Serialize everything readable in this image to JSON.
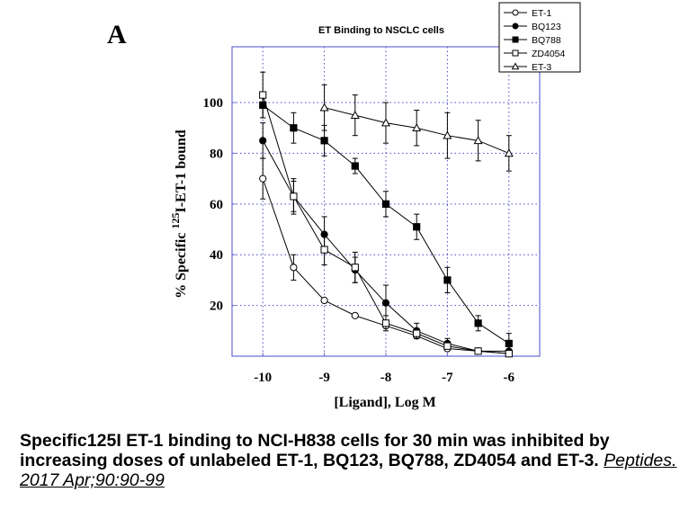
{
  "panel_label": "A",
  "chart_data": {
    "type": "line",
    "title": "ET Binding to NSCLC cells",
    "xlabel": "[Ligand], Log M",
    "ylabel_prefix": "% Specific ",
    "ylabel_superscript": "125",
    "ylabel_suffix": "I-ET-1 bound",
    "xlim": [
      -10.5,
      -5.5
    ],
    "ylim": [
      0,
      122
    ],
    "x_ticks": [
      -10,
      -9,
      -8,
      -7,
      -6
    ],
    "x_tick_labels": [
      "-10",
      "-9",
      "-8",
      "-7",
      "-6"
    ],
    "y_ticks": [
      20,
      40,
      60,
      80,
      100
    ],
    "y_tick_labels": [
      "20",
      "40",
      "60",
      "80",
      "100"
    ],
    "grid": true,
    "legend_position": "top-right",
    "series": [
      {
        "name": "ET-1",
        "marker": "open-circle",
        "x": [
          -10,
          -9.5,
          -9,
          -8.5,
          -8,
          -7.5,
          -7,
          -6.5,
          -6
        ],
        "y": [
          70,
          35,
          22,
          16,
          12,
          8,
          3,
          2,
          1
        ],
        "err": [
          8,
          5,
          0,
          0,
          0,
          0,
          0,
          0,
          0
        ]
      },
      {
        "name": "BQ123",
        "marker": "filled-circle",
        "x": [
          -10,
          -9.5,
          -9,
          -8.5,
          -8,
          -7.5,
          -7,
          -6.5,
          -6
        ],
        "y": [
          85,
          63,
          48,
          34,
          21,
          10,
          5,
          2,
          2
        ],
        "err": [
          7,
          6,
          7,
          5,
          7,
          3,
          2,
          0,
          0
        ]
      },
      {
        "name": "BQ788",
        "marker": "filled-square",
        "x": [
          -10,
          -9.5,
          -9,
          -8.5,
          -8,
          -7.5,
          -7,
          -6.5,
          -6
        ],
        "y": [
          99,
          90,
          85,
          75,
          60,
          51,
          30,
          13,
          5
        ],
        "err": [
          5,
          6,
          6,
          3,
          5,
          5,
          5,
          3,
          4
        ]
      },
      {
        "name": "ZD4054",
        "marker": "open-square",
        "x": [
          -10,
          -9.5,
          -9,
          -8.5,
          -8,
          -7.5,
          -7,
          -6.5,
          -6
        ],
        "y": [
          103,
          63,
          42,
          35,
          13,
          9,
          4,
          2,
          1
        ],
        "err": [
          9,
          7,
          6,
          6,
          3,
          2,
          1,
          0,
          0
        ]
      },
      {
        "name": "ET-3",
        "marker": "open-triangle",
        "x": [
          -9,
          -8.5,
          -8,
          -7.5,
          -7,
          -6.5,
          -6
        ],
        "y": [
          98,
          95,
          92,
          90,
          87,
          85,
          80
        ],
        "err": [
          9,
          8,
          8,
          7,
          9,
          8,
          7
        ]
      }
    ]
  },
  "caption": {
    "text": "Specific125I ET-1 binding to NCI-H838 cells for 30 min was inhibited by increasing doses of unlabeled ET-1, BQ123, BQ788, ZD4054 and ET-3. ",
    "citation": "Peptides. 2017 Apr;90:90-99"
  },
  "colors": {
    "plot_frame": "#6b6bd6",
    "grid": "#4a4ac8",
    "ink": "#000000"
  }
}
